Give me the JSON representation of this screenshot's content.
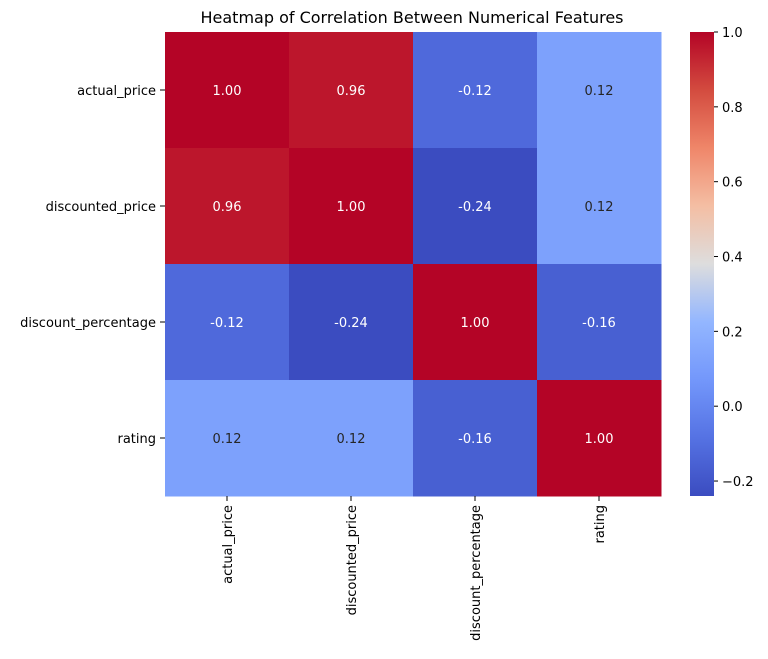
{
  "chart_data": {
    "type": "heatmap",
    "title": "Heatmap of Correlation Between Numerical Features",
    "xlabel": "",
    "ylabel": "",
    "x_categories": [
      "actual_price",
      "discounted_price",
      "discount_percentage",
      "rating"
    ],
    "y_categories": [
      "actual_price",
      "discounted_price",
      "discount_percentage",
      "rating"
    ],
    "values": [
      [
        1.0,
        0.96,
        -0.12,
        0.12
      ],
      [
        0.96,
        1.0,
        -0.24,
        0.12
      ],
      [
        -0.12,
        -0.24,
        1.0,
        -0.16
      ],
      [
        0.12,
        0.12,
        -0.16,
        1.0
      ]
    ],
    "value_labels": [
      [
        "1.00",
        "0.96",
        "-0.12",
        "0.12"
      ],
      [
        "0.96",
        "1.00",
        "-0.24",
        "0.12"
      ],
      [
        "-0.12",
        "-0.24",
        "1.00",
        "-0.16"
      ],
      [
        "0.12",
        "0.12",
        "-0.16",
        "1.00"
      ]
    ],
    "colormap": "coolwarm",
    "vmin": -0.24,
    "vmax": 1.0,
    "colorbar_ticks": [
      1.0,
      0.8,
      0.6,
      0.4,
      0.2,
      0.0,
      -0.2
    ],
    "colorbar_tick_labels": [
      "1.0",
      "0.8",
      "0.6",
      "0.4",
      "0.2",
      "0.0",
      "−0.2"
    ]
  }
}
